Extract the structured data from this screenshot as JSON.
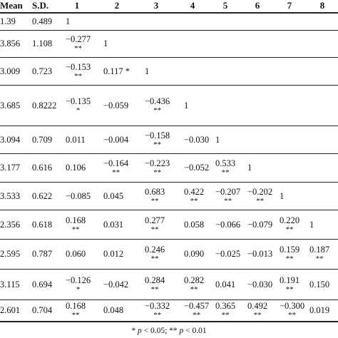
{
  "table": {
    "headers": [
      "Mean",
      "S.D.",
      "1",
      "2",
      "3",
      "4",
      "5",
      "6",
      "7",
      "8"
    ],
    "rows": [
      {
        "mean": "1.39",
        "sd": "0.489",
        "r": [
          [
            "1",
            ""
          ]
        ]
      },
      {
        "mean": "3.856",
        "sd": "1.108",
        "r": [
          [
            "−0.277",
            "**"
          ],
          [
            "1",
            ""
          ]
        ]
      },
      {
        "mean": "3.009",
        "sd": "0.723",
        "r": [
          [
            "−0.153",
            "**"
          ],
          [
            "0.117 *",
            ""
          ],
          [
            "1",
            ""
          ]
        ]
      },
      {
        "mean": "3.685",
        "sd": "0.8222",
        "r": [
          [
            "−0.135",
            "*"
          ],
          [
            "−0.059",
            ""
          ],
          [
            "−0.436",
            "**"
          ],
          [
            "1",
            ""
          ]
        ]
      },
      {
        "mean": "3.094",
        "sd": "0.709",
        "r": [
          [
            "0.011",
            ""
          ],
          [
            "−0.004",
            ""
          ],
          [
            "−0.158",
            "**"
          ],
          [
            "−0.030",
            ""
          ],
          [
            "1",
            ""
          ]
        ]
      },
      {
        "mean": "3.177",
        "sd": "0.616",
        "r": [
          [
            "0.106",
            ""
          ],
          [
            "−0.164",
            "**"
          ],
          [
            "−0.223",
            "**"
          ],
          [
            "−0.052",
            ""
          ],
          [
            "0.533",
            "**"
          ],
          [
            "1",
            ""
          ]
        ]
      },
      {
        "mean": "3.533",
        "sd": "0.622",
        "r": [
          [
            "−0.085",
            ""
          ],
          [
            "0.045",
            ""
          ],
          [
            "0.683",
            "**"
          ],
          [
            "0.422",
            "**"
          ],
          [
            "−0.207",
            "**"
          ],
          [
            "−0.202",
            "**"
          ],
          [
            "1",
            ""
          ]
        ]
      },
      {
        "mean": "2.356",
        "sd": "0.618",
        "r": [
          [
            "0.168",
            "**"
          ],
          [
            "0.031",
            ""
          ],
          [
            "0.277",
            "**"
          ],
          [
            "0.058",
            ""
          ],
          [
            "−0.066",
            ""
          ],
          [
            "−0.079",
            ""
          ],
          [
            "0.220",
            "**"
          ],
          [
            "1",
            ""
          ]
        ]
      },
      {
        "mean": "2.595",
        "sd": "0.787",
        "r": [
          [
            "0.060",
            ""
          ],
          [
            "0.012",
            ""
          ],
          [
            "0.246",
            "**"
          ],
          [
            "0.090",
            ""
          ],
          [
            "−0.025",
            ""
          ],
          [
            "−0.013",
            ""
          ],
          [
            "0.159",
            "**"
          ],
          [
            "0.187",
            "**"
          ]
        ]
      },
      {
        "mean": "3.115",
        "sd": "0.694",
        "r": [
          [
            "−0.126",
            "*"
          ],
          [
            "−0.042",
            ""
          ],
          [
            "0.284",
            "**"
          ],
          [
            "0.282",
            "**"
          ],
          [
            "0.041",
            ""
          ],
          [
            "−0.030",
            ""
          ],
          [
            "0.191",
            "**"
          ],
          [
            "0.150",
            ""
          ]
        ]
      },
      {
        "mean": "2.601",
        "sd": "0.704",
        "r": [
          [
            "0.168",
            "**"
          ],
          [
            "0.048",
            ""
          ],
          [
            "−0.332",
            "**"
          ],
          [
            "−0.457",
            "**"
          ],
          [
            "0.365",
            "**"
          ],
          [
            "0.492",
            "**"
          ],
          [
            "−0.300",
            "**"
          ],
          [
            "0.019",
            ""
          ]
        ]
      }
    ],
    "note": "* p < 0.05; ** p < 0.01"
  }
}
